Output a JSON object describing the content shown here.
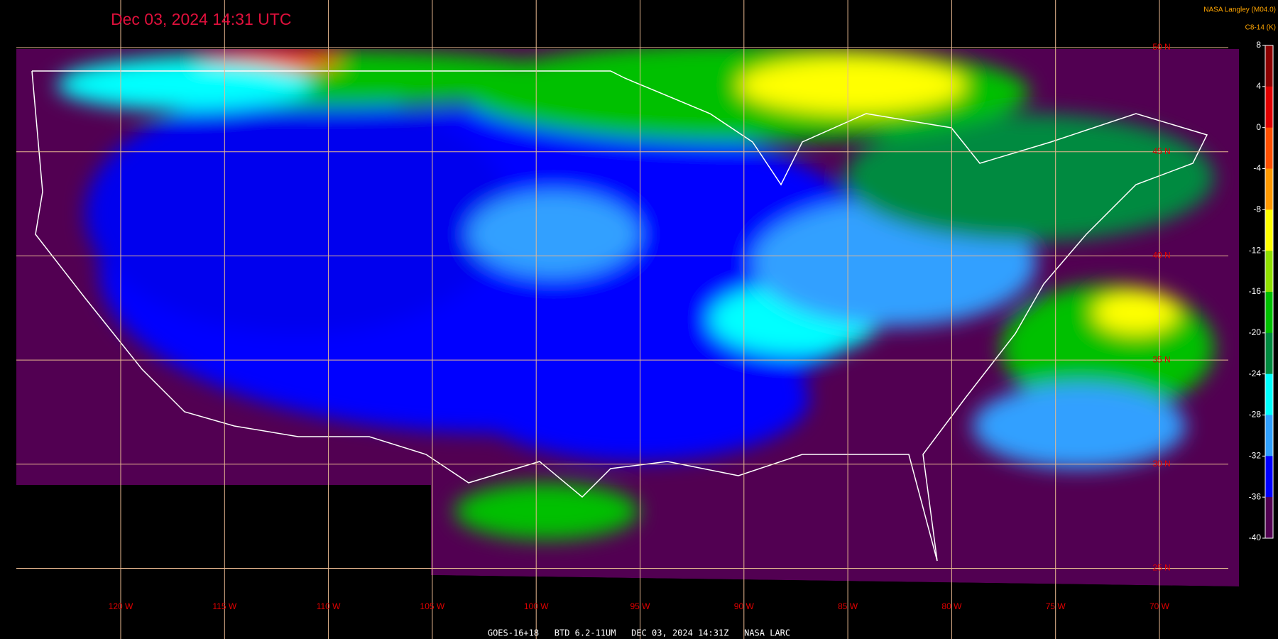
{
  "title": "Dec 03, 2024 14:31 UTC",
  "credit": "NASA Langley (M04.0)",
  "colorbar": {
    "label": "C8-14 (K)",
    "lim": [
      8,
      -40
    ],
    "ticks": [
      8,
      4,
      0,
      -4,
      -8,
      -12,
      -16,
      -20,
      -24,
      -28,
      -32,
      -36,
      -40
    ],
    "colors": [
      "#8b0000",
      "#e00000",
      "#ff5000",
      "#ff9900",
      "#ffff00",
      "#90e000",
      "#00c000",
      "#008a40",
      "#00ffff",
      "#30a0ff",
      "#0000ff",
      "#520052"
    ]
  },
  "longitude_labels": [
    "120 W",
    "115 W",
    "110 W",
    "105 W",
    "100 W",
    "95 W",
    "90 W",
    "85 W",
    "80 W",
    "75 W",
    "70 W"
  ],
  "latitude_labels": [
    "50 N",
    "45 N",
    "40 N",
    "35 N",
    "30 N",
    "25 N"
  ],
  "footer": "GOES-16+18   BTD 6.2-11UM   DEC 03, 2024 14:31Z   NASA LARC"
}
